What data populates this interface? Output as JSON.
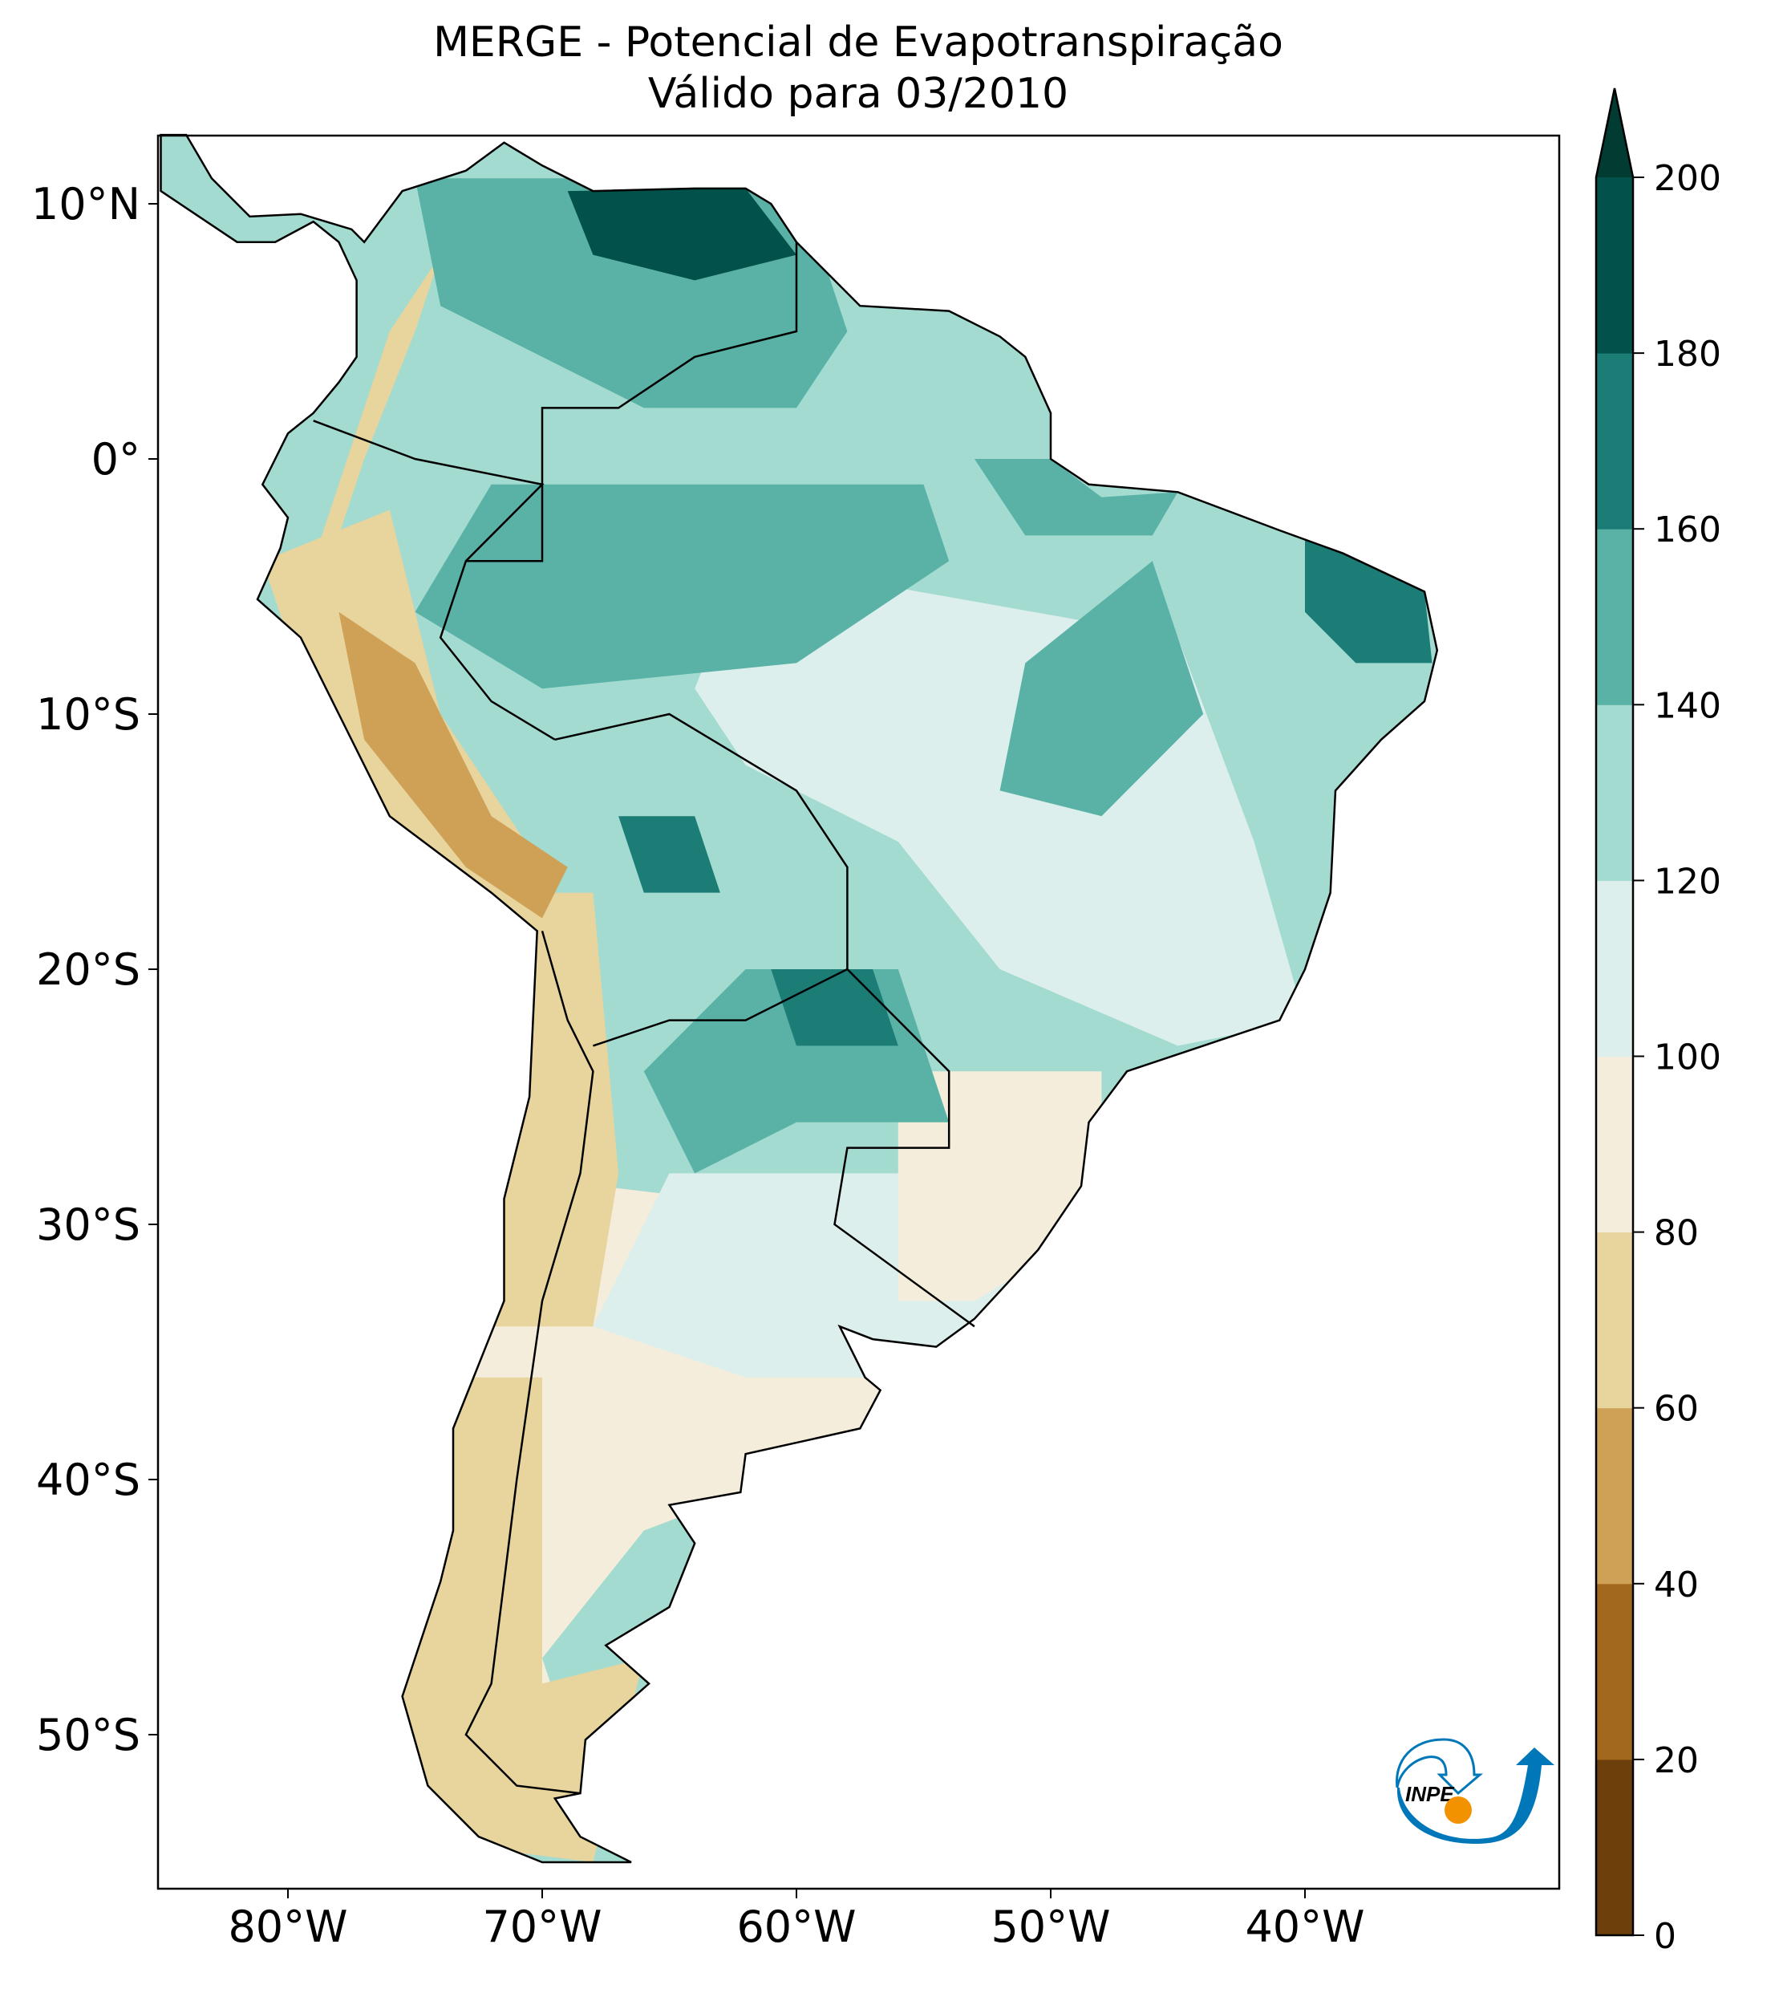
{
  "header": {
    "title": "MERGE - Potencial de Evapotranspiração",
    "subtitle": "Válido para 03/2010"
  },
  "chart_data": {
    "type": "heatmap",
    "title": "MERGE - Potencial de Evapotranspiração",
    "subtitle": "Válido para 03/2010",
    "xlim": [
      -85,
      -30
    ],
    "ylim": [
      -56,
      12.7
    ],
    "x_ticks": [
      {
        "value": -80,
        "label": "80°W"
      },
      {
        "value": -70,
        "label": "70°W"
      },
      {
        "value": -60,
        "label": "60°W"
      },
      {
        "value": -50,
        "label": "50°W"
      },
      {
        "value": -40,
        "label": "40°W"
      }
    ],
    "y_ticks": [
      {
        "value": 10,
        "label": "10°N"
      },
      {
        "value": 0,
        "label": "0°"
      },
      {
        "value": -10,
        "label": "10°S"
      },
      {
        "value": -20,
        "label": "20°S"
      },
      {
        "value": -30,
        "label": "30°S"
      },
      {
        "value": -40,
        "label": "40°S"
      },
      {
        "value": -50,
        "label": "50°S"
      }
    ],
    "colorbar": {
      "levels": [
        0,
        20,
        40,
        60,
        80,
        100,
        120,
        140,
        160,
        180,
        200
      ],
      "labels": [
        "0",
        "20",
        "40",
        "60",
        "80",
        "100",
        "120",
        "140",
        "160",
        "180",
        "200"
      ],
      "colors": [
        "#6d3f0b",
        "#a2681e",
        "#cfa156",
        "#e8d49d",
        "#f5eddb",
        "#dcefec",
        "#a3dbd1",
        "#5ab1a6",
        "#1c7d77",
        "#02514a"
      ],
      "extend_max_color": "#023b32",
      "extend": "max"
    },
    "grid": false
  },
  "logo": {
    "text": "INPE",
    "colors": {
      "blue": "#0077b8",
      "orange": "#f39200"
    }
  }
}
